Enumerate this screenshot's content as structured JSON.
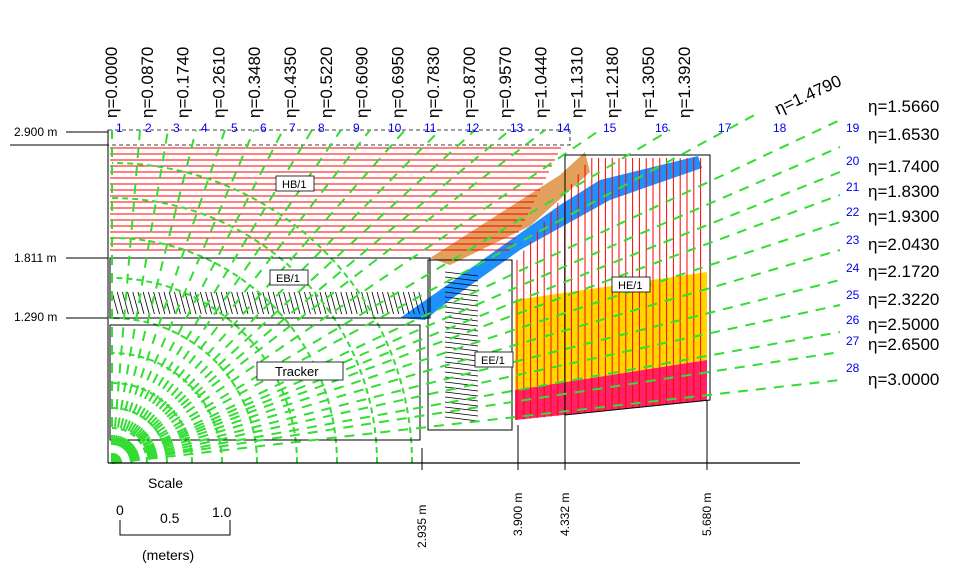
{
  "eta_top": [
    "η=0.0000",
    "η=0.0870",
    "η=0.1740",
    "η=0.2610",
    "η=0.3480",
    "η=0.4350",
    "η=0.5220",
    "η=0.6090",
    "η=0.6950",
    "η=0.7830",
    "η=0.8700",
    "η=0.9570",
    "η=1.0440",
    "η=1.1310",
    "η=1.2180",
    "η=1.3050",
    "η=1.3920"
  ],
  "eta_diag": "η=1.4790",
  "eta_right": [
    "η=1.5660",
    "η=1.6530",
    "η=1.7400",
    "η=1.8300",
    "η=1.9300",
    "η=2.0430",
    "η=2.1720",
    "η=2.3220",
    "η=2.5000",
    "η=2.6500",
    "η=3.0000"
  ],
  "towers_top": [
    "1",
    "2",
    "3",
    "4",
    "5",
    "6",
    "7",
    "8",
    "9",
    "10",
    "11",
    "12",
    "13",
    "14",
    "15",
    "16",
    "17",
    "18"
  ],
  "towers_right": [
    "19",
    "20",
    "21",
    "22",
    "23",
    "24",
    "25",
    "26",
    "27",
    "28"
  ],
  "r_labels": [
    "2.900 m",
    "1.811 m",
    "1.290 m"
  ],
  "z_labels": [
    "2.935 m",
    "3.900 m",
    "4.332 m",
    "5.680 m"
  ],
  "boxes": {
    "hb": "HB/1",
    "eb": "EB/1",
    "tracker": "Tracker",
    "ee": "EE/1",
    "he": "HE/1"
  },
  "scale": {
    "title": "Scale",
    "ticks": [
      "0",
      "0.5",
      "1.0"
    ],
    "unit": "(meters)"
  },
  "colors": {
    "hb": "#ff0000",
    "he": "#ff0000",
    "ecal_barrel": "#000000",
    "tracker": "#33dd33",
    "eta_lines": "#33dd33",
    "blue_fill": "#1e90ff",
    "orange_fill": "#e2a05c",
    "yellow_fill": "#ffd700",
    "pink_fill": "#ff2266",
    "tower_numbers": "#0000ee"
  }
}
